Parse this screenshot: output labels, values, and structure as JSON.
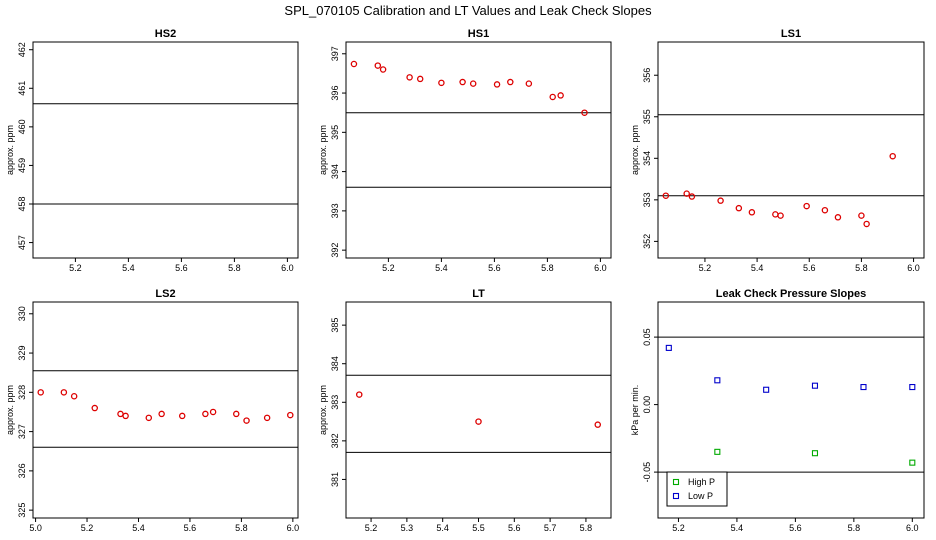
{
  "figure": {
    "title": "SPL_070105  Calibration and LT Values and Leak Check Slopes"
  },
  "chart_data": [
    {
      "type": "scatter",
      "title": "HS2",
      "ylabel": "approx. ppm",
      "xlim": [
        5.04,
        6.04
      ],
      "ylim": [
        456.6,
        462.2
      ],
      "xticks": [
        5.2,
        5.4,
        5.6,
        5.8,
        6.0
      ],
      "xtick_labels": [
        "5.2",
        "5.4",
        "5.6",
        "5.8",
        "6.0"
      ],
      "yticks": [
        457,
        458,
        459,
        460,
        461,
        462
      ],
      "ytick_labels": [
        "457",
        "458",
        "459",
        "460",
        "461",
        "462"
      ],
      "hlines": [
        458.0,
        460.6
      ],
      "series": [
        {
          "color": "#dd0000",
          "marker": "circle",
          "x": [],
          "y": []
        }
      ]
    },
    {
      "type": "scatter",
      "title": "HS1",
      "ylabel": "approx. ppm",
      "xlim": [
        5.04,
        6.04
      ],
      "ylim": [
        391.8,
        397.3
      ],
      "xticks": [
        5.2,
        5.4,
        5.6,
        5.8,
        6.0
      ],
      "xtick_labels": [
        "5.2",
        "5.4",
        "5.6",
        "5.8",
        "6.0"
      ],
      "yticks": [
        392,
        393,
        394,
        395,
        396,
        397
      ],
      "ytick_labels": [
        "392",
        "393",
        "394",
        "395",
        "396",
        "397"
      ],
      "hlines": [
        393.6,
        395.5
      ],
      "series": [
        {
          "color": "#dd0000",
          "marker": "circle",
          "x": [
            5.07,
            5.16,
            5.18,
            5.28,
            5.32,
            5.4,
            5.48,
            5.52,
            5.61,
            5.66,
            5.73,
            5.82,
            5.85,
            5.94
          ],
          "y": [
            396.74,
            396.7,
            396.6,
            396.4,
            396.36,
            396.26,
            396.28,
            396.24,
            396.22,
            396.28,
            396.24,
            395.9,
            395.94,
            395.5
          ]
        }
      ]
    },
    {
      "type": "scatter",
      "title": "LS1",
      "ylabel": "approx. ppm",
      "xlim": [
        5.02,
        6.04
      ],
      "ylim": [
        351.6,
        356.8
      ],
      "xticks": [
        5.2,
        5.4,
        5.6,
        5.8,
        6.0
      ],
      "xtick_labels": [
        "5.2",
        "5.4",
        "5.6",
        "5.8",
        "6.0"
      ],
      "yticks": [
        352,
        353,
        354,
        355,
        356
      ],
      "ytick_labels": [
        "352",
        "353",
        "354",
        "355",
        "356"
      ],
      "hlines": [
        353.1,
        355.05
      ],
      "series": [
        {
          "color": "#dd0000",
          "marker": "circle",
          "x": [
            5.05,
            5.13,
            5.15,
            5.26,
            5.33,
            5.38,
            5.47,
            5.49,
            5.59,
            5.66,
            5.71,
            5.8,
            5.82,
            5.92
          ],
          "y": [
            353.1,
            353.15,
            353.08,
            352.98,
            352.8,
            352.7,
            352.65,
            352.62,
            352.85,
            352.75,
            352.58,
            352.62,
            352.42,
            354.05
          ]
        }
      ]
    },
    {
      "type": "scatter",
      "title": "LS2",
      "ylabel": "approx. ppm",
      "xlim": [
        4.99,
        6.02
      ],
      "ylim": [
        324.8,
        330.3
      ],
      "xticks": [
        5.0,
        5.2,
        5.4,
        5.6,
        5.8,
        6.0
      ],
      "xtick_labels": [
        "5.0",
        "5.2",
        "5.4",
        "5.6",
        "5.8",
        "6.0"
      ],
      "yticks": [
        325,
        326,
        327,
        328,
        329,
        330
      ],
      "ytick_labels": [
        "325",
        "326",
        "327",
        "328",
        "329",
        "330"
      ],
      "hlines": [
        326.6,
        328.55
      ],
      "series": [
        {
          "color": "#dd0000",
          "marker": "circle",
          "x": [
            5.02,
            5.11,
            5.15,
            5.23,
            5.33,
            5.35,
            5.44,
            5.49,
            5.57,
            5.66,
            5.69,
            5.78,
            5.82,
            5.9,
            5.99
          ],
          "y": [
            328.0,
            328.0,
            327.9,
            327.6,
            327.45,
            327.4,
            327.35,
            327.45,
            327.4,
            327.45,
            327.5,
            327.45,
            327.28,
            327.35,
            327.42
          ]
        }
      ]
    },
    {
      "type": "scatter",
      "title": "LT",
      "ylabel": "approx. ppm",
      "xlim": [
        5.13,
        5.87
      ],
      "ylim": [
        380.0,
        385.6
      ],
      "xticks": [
        5.2,
        5.3,
        5.4,
        5.5,
        5.6,
        5.7,
        5.8
      ],
      "xtick_labels": [
        "5.2",
        "5.3",
        "5.4",
        "5.5",
        "5.6",
        "5.7",
        "5.8"
      ],
      "yticks": [
        381,
        382,
        383,
        384,
        385
      ],
      "ytick_labels": [
        "381",
        "382",
        "383",
        "384",
        "385"
      ],
      "hlines": [
        381.7,
        383.7
      ],
      "series": [
        {
          "color": "#dd0000",
          "marker": "circle",
          "x": [
            5.167,
            5.5,
            5.833
          ],
          "y": [
            383.2,
            382.5,
            382.42
          ]
        }
      ]
    },
    {
      "type": "scatter",
      "title": "Leak Check Pressure Slopes",
      "ylabel": "kPa per min.",
      "xlim": [
        5.13,
        6.04
      ],
      "ylim": [
        -0.084,
        0.076
      ],
      "xticks": [
        5.2,
        5.4,
        5.6,
        5.8,
        6.0
      ],
      "xtick_labels": [
        "5.2",
        "5.4",
        "5.6",
        "5.8",
        "6.0"
      ],
      "yticks": [
        -0.05,
        0.0,
        0.05
      ],
      "ytick_labels": [
        "-0.05",
        "0.00",
        "0.05"
      ],
      "hlines": [
        -0.05,
        0.05
      ],
      "legend": {
        "position": "bottom-left",
        "entries": [
          {
            "label": "High P",
            "color": "#00aa00",
            "marker": "square"
          },
          {
            "label": "Low P",
            "color": "#0000cc",
            "marker": "square"
          }
        ]
      },
      "series": [
        {
          "name": "High P",
          "color": "#00aa00",
          "marker": "square",
          "x": [
            5.333,
            5.667,
            6.0
          ],
          "y": [
            -0.035,
            -0.036,
            -0.043
          ]
        },
        {
          "name": "Low P",
          "color": "#0000cc",
          "marker": "square",
          "x": [
            5.167,
            5.333,
            5.5,
            5.667,
            5.833,
            6.0
          ],
          "y": [
            0.042,
            0.018,
            0.011,
            0.014,
            0.013,
            0.013
          ]
        }
      ]
    }
  ]
}
